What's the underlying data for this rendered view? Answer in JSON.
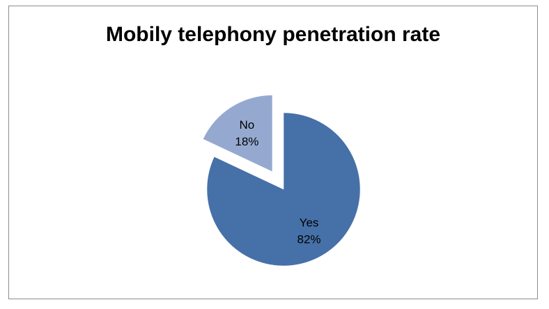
{
  "chart_data": {
    "type": "pie",
    "title": "Mobily telephony penetration rate",
    "slices": [
      {
        "label": "Yes",
        "value": 82,
        "display": "82%",
        "color": "#4670A8"
      },
      {
        "label": "No",
        "value": 18,
        "display": "18%",
        "color": "#95A9D0"
      }
    ],
    "exploded": "No",
    "legend": "none"
  }
}
